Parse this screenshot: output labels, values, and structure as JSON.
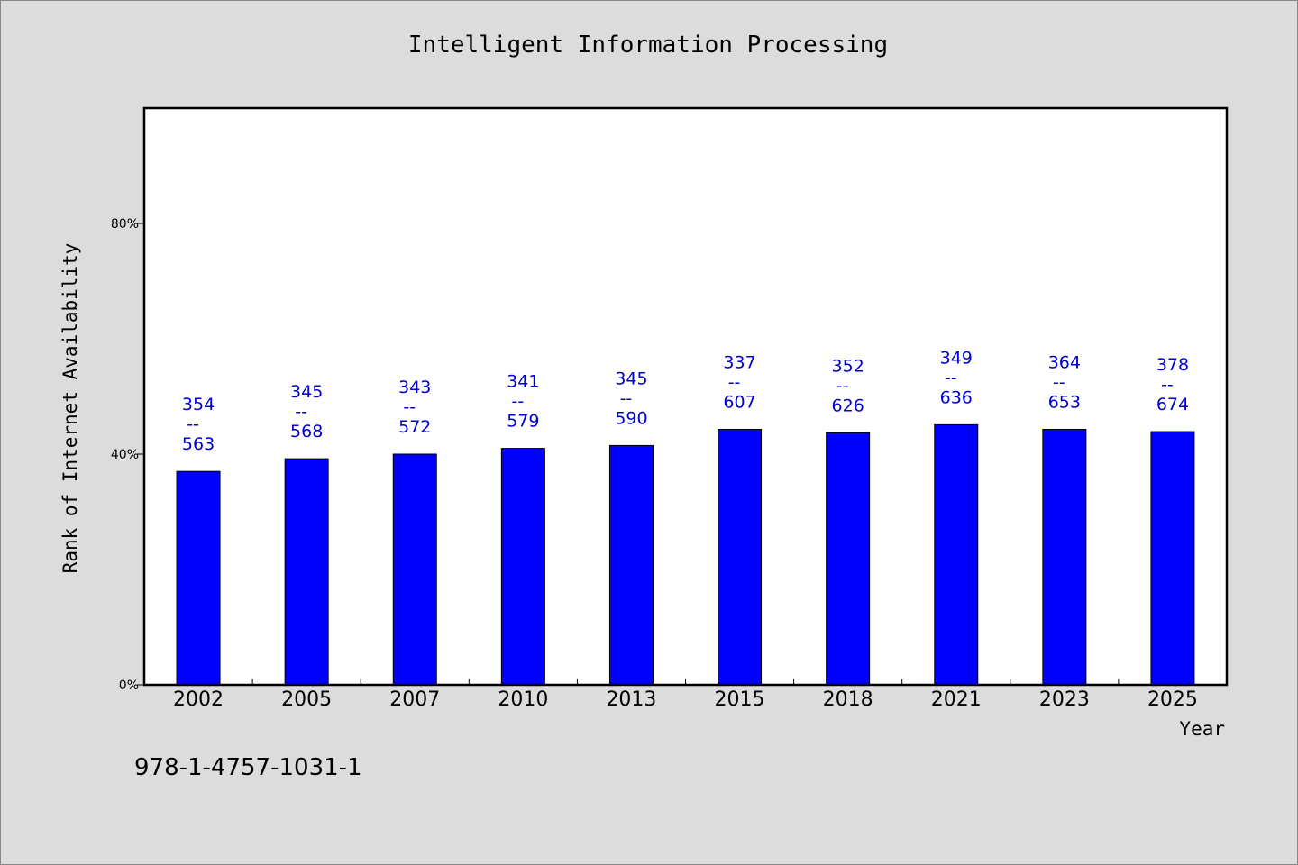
{
  "chart_data": {
    "type": "bar",
    "title": "Intelligent Information Processing",
    "xlabel": "Year",
    "ylabel": "Rank of Internet Availability",
    "categories": [
      "2002",
      "2005",
      "2007",
      "2010",
      "2013",
      "2015",
      "2018",
      "2021",
      "2023",
      "2025"
    ],
    "values": [
      37,
      39.2,
      40,
      41,
      41.5,
      44.3,
      43.7,
      45.1,
      44.3,
      43.9
    ],
    "top_labels": [
      "354",
      "345",
      "343",
      "341",
      "345",
      "337",
      "352",
      "349",
      "364",
      "378"
    ],
    "dash_label": "--",
    "bottom_labels": [
      "563",
      "568",
      "572",
      "579",
      "590",
      "607",
      "626",
      "636",
      "653",
      "674"
    ],
    "yticks": [
      0,
      40,
      80
    ],
    "ytick_labels": [
      "0%",
      "40%",
      "80%"
    ],
    "ylim": [
      0,
      100
    ],
    "bar_color": "#0000ff",
    "label_color": "#0000cc",
    "grid": false,
    "legend": "none"
  },
  "footer": {
    "code": "978-1-4757-1031-1"
  }
}
